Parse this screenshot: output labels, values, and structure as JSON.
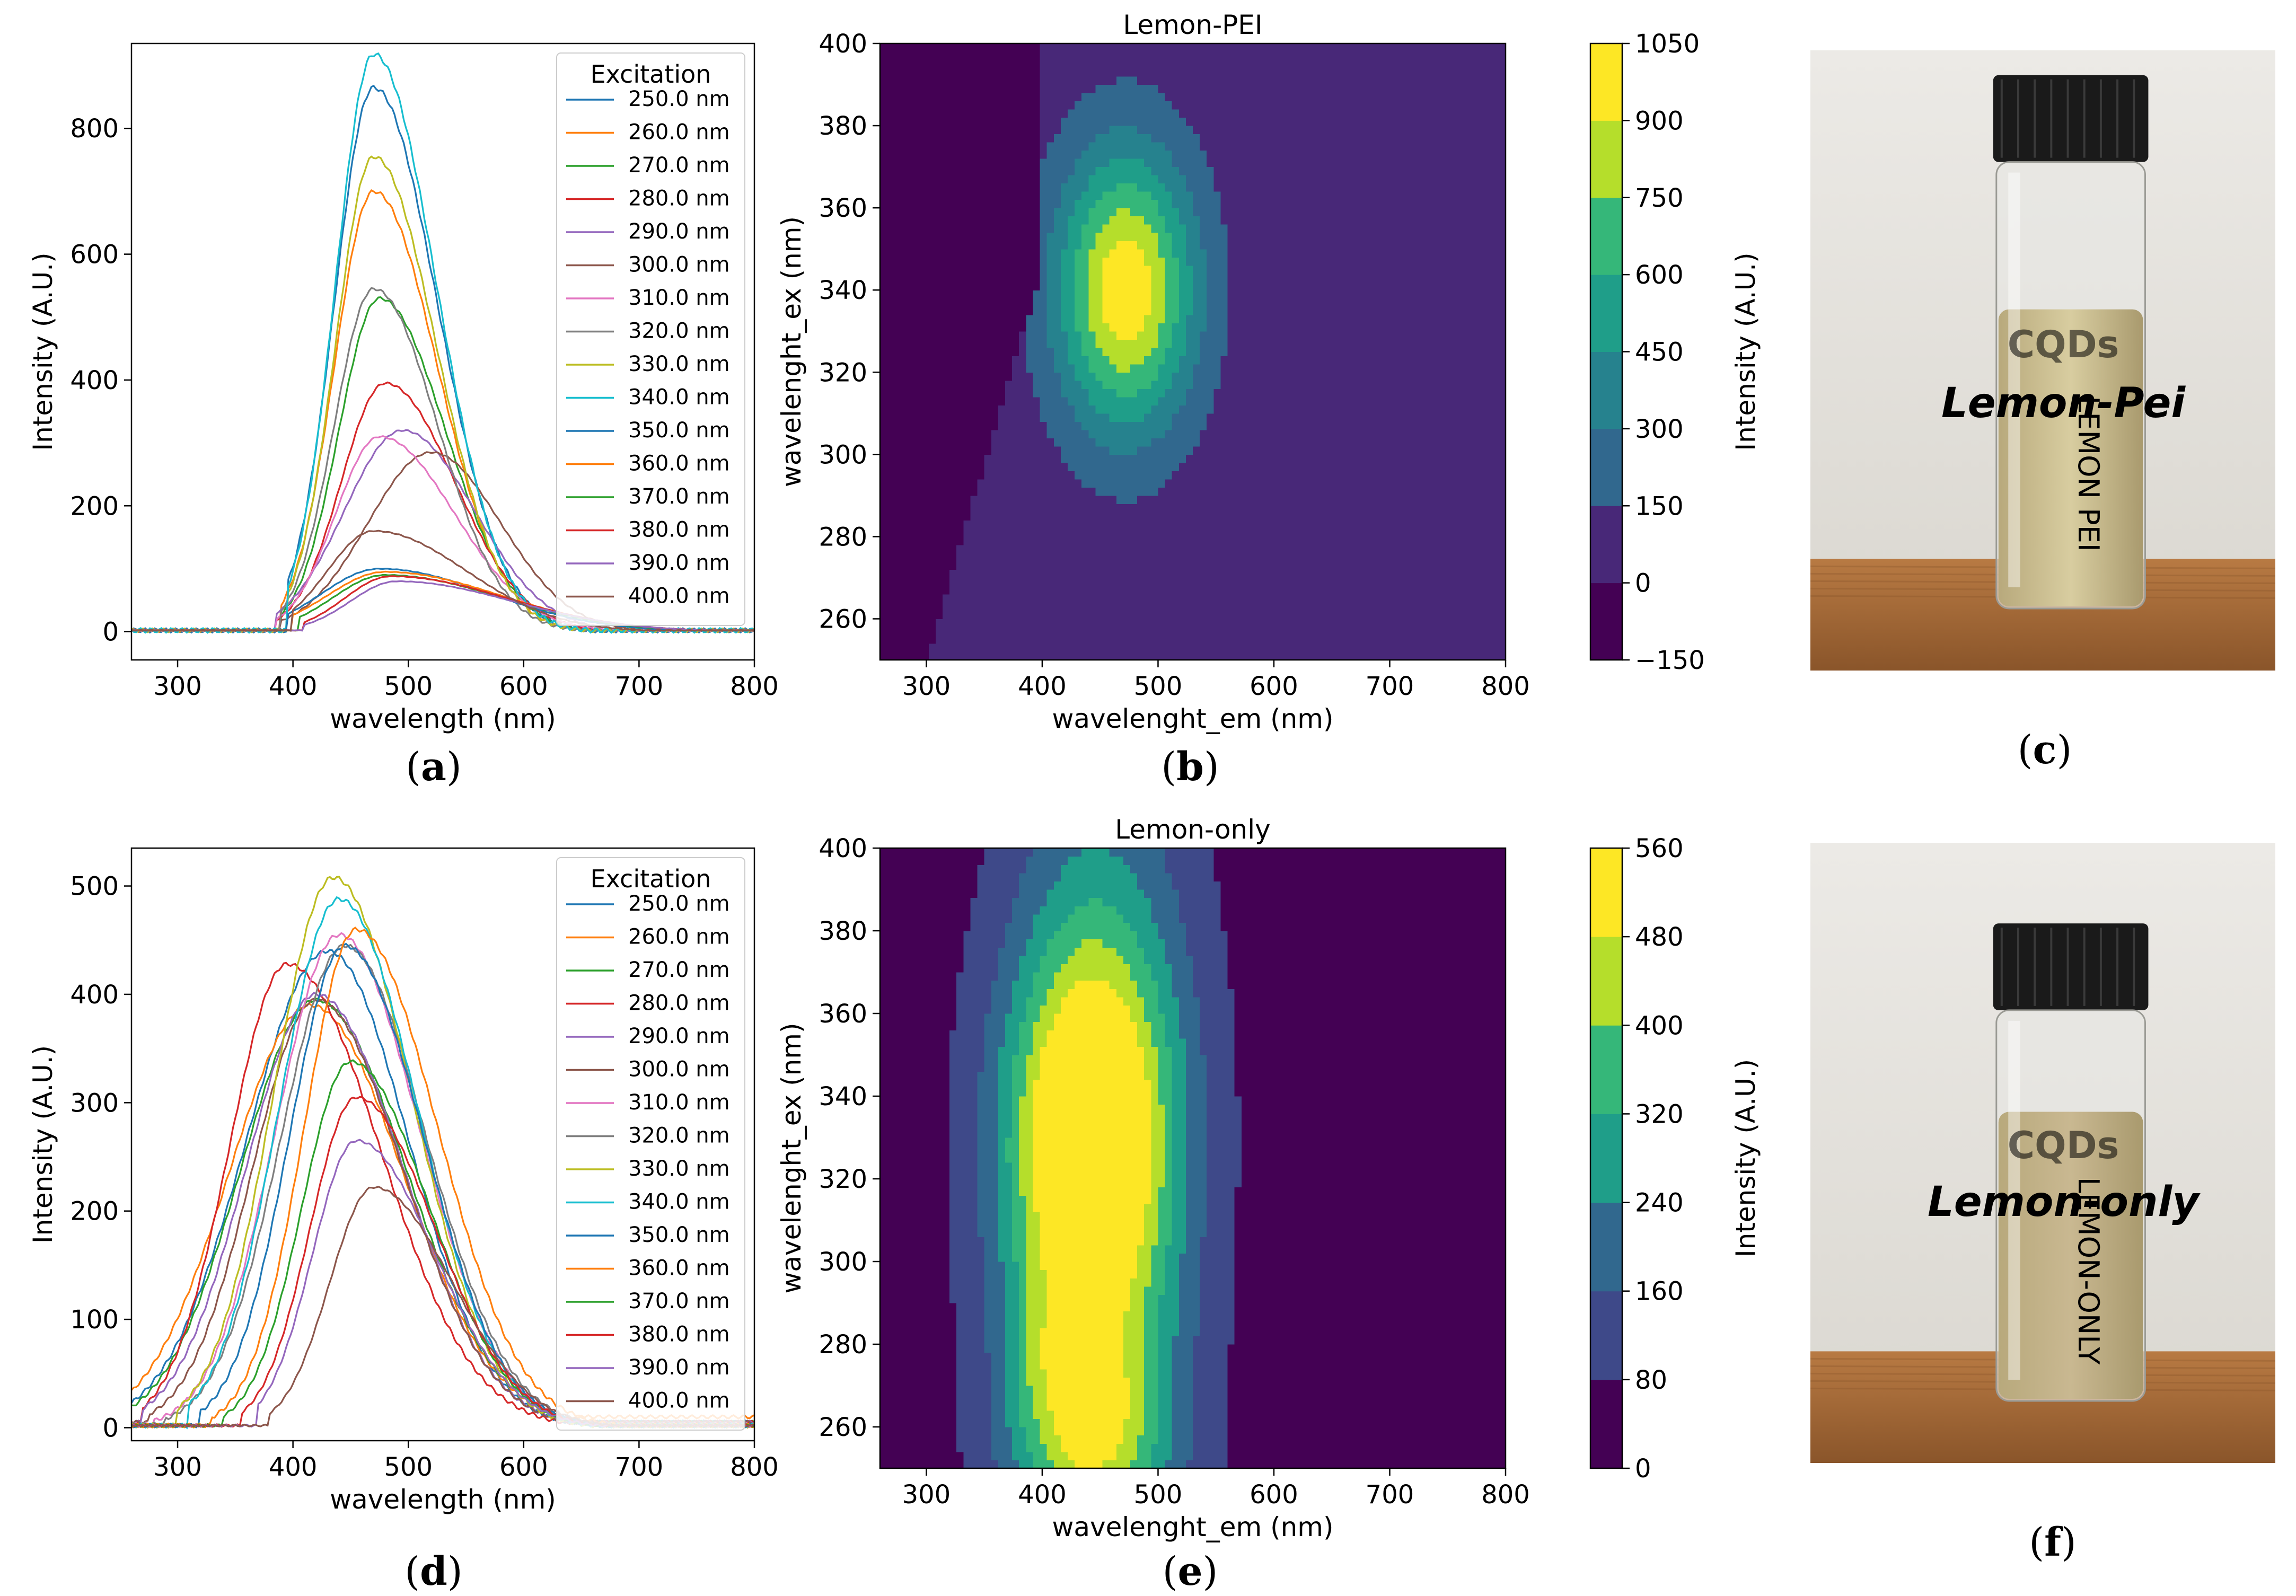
{
  "figure": {
    "panel_labels": [
      {
        "id": "a",
        "open": "(",
        "letter": "a",
        "close": ")"
      },
      {
        "id": "b",
        "open": "(",
        "letter": "b",
        "close": ")"
      },
      {
        "id": "c",
        "open": "(",
        "letter": "c",
        "close": ")"
      },
      {
        "id": "d",
        "open": "(",
        "letter": "d",
        "close": ")"
      },
      {
        "id": "e",
        "open": "(",
        "letter": "e",
        "close": ")"
      },
      {
        "id": "f",
        "open": "(",
        "letter": "f",
        "close": ")"
      }
    ]
  },
  "colors": {
    "series": [
      "#1f77b4",
      "#ff7f0e",
      "#2ca02c",
      "#d62728",
      "#9467bd",
      "#8c564b",
      "#e377c2",
      "#7f7f7f",
      "#bcbd22",
      "#17becf",
      "#1f77b4",
      "#ff7f0e",
      "#2ca02c",
      "#d62728",
      "#9467bd",
      "#8c564b"
    ],
    "viridis": [
      "#440154",
      "#482878",
      "#3e4989",
      "#31688e",
      "#26828e",
      "#1f9e89",
      "#35b779",
      "#6ece58",
      "#b5de2b",
      "#fde725"
    ]
  },
  "photos": [
    {
      "id": "c",
      "cap_label": "",
      "handwriting_main": "Lemon-Pei",
      "handwriting_vertical": "LEMON PEI",
      "handwriting_top": "CQDs",
      "liquid_color": "#d8cda0",
      "liquid_top": 0.33,
      "label_offset": 0.72
    },
    {
      "id": "f",
      "cap_label": "",
      "handwriting_main": "Lemon-only",
      "handwriting_vertical": "LEMON-ONLY",
      "handwriting_top": "CQDs",
      "liquid_color": "#c9b891",
      "liquid_top": 0.26,
      "label_offset": 0.75
    }
  ],
  "chart_data": [
    {
      "id": "a",
      "type": "line",
      "title": "",
      "xlabel": "wavelength (nm)",
      "ylabel": "Intensity (A.U.)",
      "xlim": [
        260,
        800
      ],
      "ylim": [
        -45,
        935
      ],
      "xticks": [
        300,
        400,
        500,
        600,
        700,
        800
      ],
      "yticks": [
        0,
        200,
        400,
        600,
        800
      ],
      "legend": {
        "title": "Excitation",
        "position": "top-right"
      },
      "series": [
        {
          "name": "250.0 nm",
          "peak_x": 470,
          "peak_y": 865,
          "start_x": 410,
          "start_y": 2,
          "onset_x": 395,
          "width_left": 34,
          "width_right": 55
        },
        {
          "name": "260.0 nm",
          "peak_x": 470,
          "peak_y": 700,
          "start_x": 410,
          "start_y": 2,
          "onset_x": 390,
          "width_left": 34,
          "width_right": 55
        },
        {
          "name": "270.0 nm",
          "peak_x": 475,
          "peak_y": 530,
          "start_x": 410,
          "start_y": 2,
          "onset_x": 390,
          "width_left": 35,
          "width_right": 57
        },
        {
          "name": "280.0 nm",
          "peak_x": 480,
          "peak_y": 395,
          "start_x": 410,
          "start_y": 2,
          "onset_x": 385,
          "width_left": 38,
          "width_right": 60
        },
        {
          "name": "290.0 nm",
          "peak_x": 495,
          "peak_y": 320,
          "start_x": 410,
          "start_y": 2,
          "onset_x": 385,
          "width_left": 50,
          "width_right": 62
        },
        {
          "name": "300.0 nm",
          "peak_x": 520,
          "peak_y": 285,
          "start_x": 410,
          "start_y": 2,
          "onset_x": 390,
          "width_left": 55,
          "width_right": 60
        },
        {
          "name": "310.0 nm",
          "peak_x": 475,
          "peak_y": 310,
          "start_x": 410,
          "start_y": 2,
          "onset_x": 385,
          "width_left": 38,
          "width_right": 65
        },
        {
          "name": "320.0 nm",
          "peak_x": 470,
          "peak_y": 545,
          "start_x": 410,
          "start_y": 2,
          "onset_x": 390,
          "width_left": 34,
          "width_right": 55
        },
        {
          "name": "330.0 nm",
          "peak_x": 470,
          "peak_y": 755,
          "start_x": 410,
          "start_y": 2,
          "onset_x": 395,
          "width_left": 33,
          "width_right": 54
        },
        {
          "name": "340.0 nm",
          "peak_x": 470,
          "peak_y": 918,
          "start_x": 410,
          "start_y": 2,
          "onset_x": 395,
          "width_left": 33,
          "width_right": 54
        },
        {
          "name": "350.0 nm",
          "peak_x": 475,
          "peak_y": 100,
          "start_x": 410,
          "start_y": 2,
          "onset_x": 395,
          "width_left": 50,
          "width_right": 95
        },
        {
          "name": "360.0 nm",
          "peak_x": 480,
          "peak_y": 95,
          "start_x": 410,
          "start_y": 2,
          "onset_x": 400,
          "width_left": 50,
          "width_right": 100
        },
        {
          "name": "370.0 nm",
          "peak_x": 480,
          "peak_y": 90,
          "start_x": 410,
          "start_y": 2,
          "onset_x": 405,
          "width_left": 45,
          "width_right": 100
        },
        {
          "name": "380.0 nm",
          "peak_x": 485,
          "peak_y": 88,
          "start_x": 410,
          "start_y": 2,
          "onset_x": 410,
          "width_left": 40,
          "width_right": 100
        },
        {
          "name": "390.0 nm",
          "peak_x": 490,
          "peak_y": 80,
          "start_x": 410,
          "start_y": 2,
          "onset_x": 410,
          "width_left": 40,
          "width_right": 100
        },
        {
          "name": "400.0 nm",
          "peak_x": 470,
          "peak_y": 160,
          "start_x": 410,
          "start_y": 2,
          "onset_x": 400,
          "width_left": 40,
          "width_right": 80
        }
      ]
    },
    {
      "id": "b",
      "type": "heatmap",
      "title": "Lemon-PEI",
      "xlabel": "wavelenght_em (nm)",
      "ylabel": "wavelenght_ex (nm)",
      "xlim": [
        260,
        800
      ],
      "ylim": [
        250,
        400
      ],
      "xticks": [
        300,
        400,
        500,
        600,
        700,
        800
      ],
      "yticks": [
        260,
        280,
        300,
        320,
        340,
        360,
        380,
        400
      ],
      "colorbar": {
        "label": "Intensity (A.U.)",
        "ticks": [
          -150,
          0,
          150,
          300,
          450,
          600,
          750,
          900,
          1050
        ],
        "levels": [
          -150,
          0,
          150,
          300,
          450,
          600,
          750,
          900,
          1050
        ]
      },
      "background_value": 50,
      "masked_value": -100,
      "mask_rule": "x < ex + 10 and ex < 360",
      "peaks": [
        {
          "em": 472,
          "ex": 340,
          "amp": 970,
          "sigma_em": 42,
          "sigma_ex": 24
        }
      ]
    },
    {
      "id": "d",
      "type": "line",
      "title": "",
      "xlabel": "wavelength (nm)",
      "ylabel": "Intensity (A.U.)",
      "xlim": [
        260,
        800
      ],
      "ylim": [
        -12,
        535
      ],
      "xticks": [
        300,
        400,
        500,
        600,
        700,
        800
      ],
      "yticks": [
        0,
        100,
        200,
        300,
        400,
        500
      ],
      "legend": {
        "title": "Excitation",
        "position": "top-right"
      },
      "series": [
        {
          "name": "250.0 nm",
          "peak_x": 430,
          "peak_y": 440,
          "start_x": 260,
          "start_y": 5,
          "onset_x": 260,
          "width_left": 70,
          "width_right": 70
        },
        {
          "name": "260.0 nm",
          "peak_x": 415,
          "peak_y": 390,
          "start_x": 260,
          "start_y": 10,
          "onset_x": 260,
          "width_left": 70,
          "width_right": 80
        },
        {
          "name": "270.0 nm",
          "peak_x": 420,
          "peak_y": 395,
          "start_x": 260,
          "start_y": 5,
          "onset_x": 260,
          "width_left": 65,
          "width_right": 78
        },
        {
          "name": "280.0 nm",
          "peak_x": 395,
          "peak_y": 428,
          "start_x": 260,
          "start_y": 5,
          "onset_x": 270,
          "width_left": 50,
          "width_right": 80
        },
        {
          "name": "290.0 nm",
          "peak_x": 420,
          "peak_y": 400,
          "start_x": 260,
          "start_y": 5,
          "onset_x": 270,
          "width_left": 60,
          "width_right": 75
        },
        {
          "name": "300.0 nm",
          "peak_x": 420,
          "peak_y": 395,
          "start_x": 260,
          "start_y": 5,
          "onset_x": 275,
          "width_left": 55,
          "width_right": 75
        },
        {
          "name": "310.0 nm",
          "peak_x": 440,
          "peak_y": 455,
          "start_x": 260,
          "start_y": 3,
          "onset_x": 280,
          "width_left": 55,
          "width_right": 70
        },
        {
          "name": "320.0 nm",
          "peak_x": 445,
          "peak_y": 445,
          "start_x": 260,
          "start_y": 3,
          "onset_x": 290,
          "width_left": 55,
          "width_right": 70
        },
        {
          "name": "330.0 nm",
          "peak_x": 435,
          "peak_y": 508,
          "start_x": 260,
          "start_y": 2,
          "onset_x": 300,
          "width_left": 52,
          "width_right": 68
        },
        {
          "name": "340.0 nm",
          "peak_x": 440,
          "peak_y": 488,
          "start_x": 260,
          "start_y": 2,
          "onset_x": 310,
          "width_left": 52,
          "width_right": 68
        },
        {
          "name": "350.0 nm",
          "peak_x": 445,
          "peak_y": 445,
          "start_x": 260,
          "start_y": 2,
          "onset_x": 320,
          "width_left": 48,
          "width_right": 68
        },
        {
          "name": "360.0 nm",
          "peak_x": 455,
          "peak_y": 460,
          "start_x": 260,
          "start_y": 2,
          "onset_x": 330,
          "width_left": 45,
          "width_right": 70
        },
        {
          "name": "370.0 nm",
          "peak_x": 450,
          "peak_y": 338,
          "start_x": 260,
          "start_y": 2,
          "onset_x": 340,
          "width_left": 42,
          "width_right": 68
        },
        {
          "name": "380.0 nm",
          "peak_x": 455,
          "peak_y": 305,
          "start_x": 260,
          "start_y": 2,
          "onset_x": 355,
          "width_left": 40,
          "width_right": 68
        },
        {
          "name": "390.0 nm",
          "peak_x": 455,
          "peak_y": 265,
          "start_x": 260,
          "start_y": 2,
          "onset_x": 370,
          "width_left": 38,
          "width_right": 68
        },
        {
          "name": "400.0 nm",
          "peak_x": 470,
          "peak_y": 222,
          "start_x": 260,
          "start_y": 2,
          "onset_x": 380,
          "width_left": 38,
          "width_right": 68
        }
      ]
    },
    {
      "id": "e",
      "type": "heatmap",
      "title": "Lemon-only",
      "xlabel": "wavelenght_em (nm)",
      "ylabel": "wavelenght_ex (nm)",
      "xlim": [
        260,
        800
      ],
      "ylim": [
        250,
        400
      ],
      "xticks": [
        300,
        400,
        500,
        600,
        700,
        800
      ],
      "yticks": [
        260,
        280,
        300,
        320,
        340,
        360,
        380,
        400
      ],
      "colorbar": {
        "label": "Intensity (A.U.)",
        "ticks": [
          0,
          80,
          160,
          240,
          320,
          400,
          480,
          560
        ],
        "levels": [
          0,
          80,
          160,
          240,
          320,
          400,
          480,
          560
        ]
      },
      "background_value": 40,
      "masked_value": null,
      "mask_rule": "",
      "peaks": [
        {
          "em": 440,
          "ex": 330,
          "amp": 400,
          "sigma_em": 50,
          "sigma_ex": 30
        },
        {
          "em": 445,
          "ex": 285,
          "amp": 320,
          "sigma_em": 55,
          "sigma_ex": 60
        },
        {
          "em": 440,
          "ex": 260,
          "amp": 200,
          "sigma_em": 45,
          "sigma_ex": 15
        },
        {
          "em": 395,
          "ex": 280,
          "amp": 80,
          "sigma_em": 18,
          "sigma_ex": 12
        },
        {
          "em": 450,
          "ex": 375,
          "amp": 150,
          "sigma_em": 55,
          "sigma_ex": 40
        }
      ]
    }
  ]
}
